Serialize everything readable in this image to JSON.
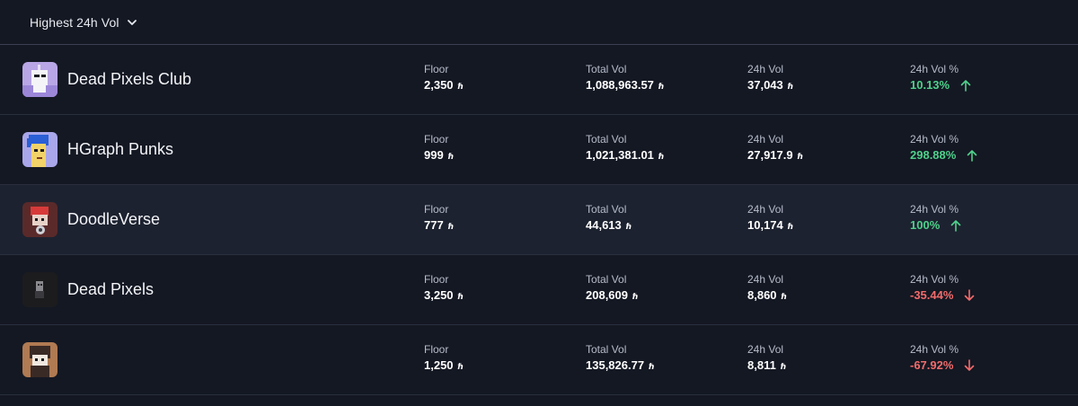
{
  "sort": {
    "label": "Highest 24h Vol",
    "icon": "chevron-down-icon"
  },
  "columns": {
    "floor": "Floor",
    "total_vol": "Total Vol",
    "vol_24h": "24h Vol",
    "vol_pct": "24h Vol %"
  },
  "currency_symbol": "ℏ",
  "colors": {
    "positive": "#4fd18b",
    "negative": "#f26b6b",
    "background": "#141823"
  },
  "rows": [
    {
      "name": "Dead Pixels Club",
      "floor": "2,350",
      "total_vol": "1,088,963.57",
      "vol_24h": "37,043",
      "vol_pct": "10.13%",
      "trend": "up"
    },
    {
      "name": "HGraph Punks",
      "floor": "999",
      "total_vol": "1,021,381.01",
      "vol_24h": "27,917.9",
      "vol_pct": "298.88%",
      "trend": "up"
    },
    {
      "name": "DoodleVerse",
      "floor": "777",
      "total_vol": "44,613",
      "vol_24h": "10,174",
      "vol_pct": "100%",
      "trend": "up"
    },
    {
      "name": "Dead Pixels",
      "floor": "3,250",
      "total_vol": "208,609",
      "vol_24h": "8,860",
      "vol_pct": "-35.44%",
      "trend": "down"
    },
    {
      "name": "",
      "floor": "1,250",
      "total_vol": "135,826.77",
      "vol_24h": "8,811",
      "vol_pct": "-67.92%",
      "trend": "down"
    }
  ]
}
